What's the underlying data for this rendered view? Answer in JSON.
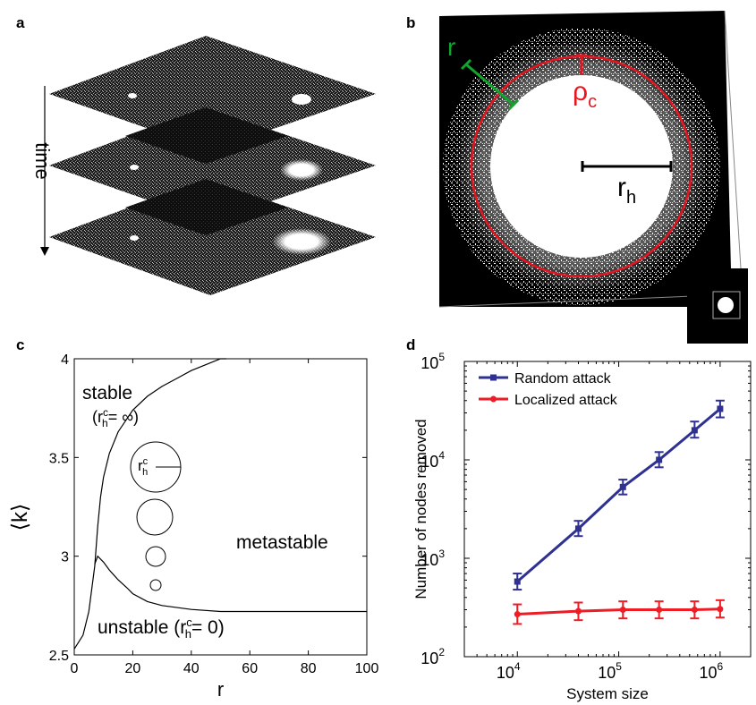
{
  "panels": {
    "a": {
      "label": "a",
      "axis_label": "time"
    },
    "b": {
      "label": "b",
      "r_label": "r",
      "rho_label": "ρ",
      "rho_sub": "c",
      "rh_label": "r",
      "rh_sub": "h",
      "colors": {
        "ring": "#e8141f",
        "r_marker": "#11a52b",
        "rh_marker": "#000000"
      }
    },
    "c": {
      "label": "c",
      "region_stable": "stable",
      "stable_condition": "(r",
      "stable_condition_sup": "c",
      "stable_condition_sub": "h",
      "stable_condition_rest": "= ∞)",
      "region_metastable": "metastable",
      "region_unstable": "unstable (r",
      "unstable_sup": "c",
      "unstable_sub": "h",
      "unstable_rest": "= 0)",
      "circle_label": "r",
      "circle_label_sup": "c",
      "circle_label_sub": "h"
    },
    "d": {
      "label": "d",
      "colors": {
        "random": "#2e3192",
        "localized": "#ee1c25"
      }
    }
  },
  "chart_data": [
    {
      "type": "line",
      "panel": "c",
      "xlabel": "r",
      "ylabel": "⟨k⟩",
      "xlim": [
        0,
        100
      ],
      "ylim": [
        2.5,
        4.0
      ],
      "xticks": [
        "0",
        "20",
        "40",
        "60",
        "80",
        "100"
      ],
      "yticks": [
        "2.5",
        "3",
        "3.5",
        "4"
      ],
      "series": [
        {
          "role": "stable boundary",
          "x": [
            0,
            3,
            5,
            7,
            8,
            9,
            10,
            12,
            15,
            20,
            25,
            30,
            35,
            40,
            45,
            50,
            52
          ],
          "y": [
            2.53,
            2.6,
            2.72,
            2.95,
            3.15,
            3.3,
            3.4,
            3.52,
            3.63,
            3.74,
            3.81,
            3.86,
            3.9,
            3.94,
            3.97,
            4.0,
            4.0
          ]
        },
        {
          "role": "unstable boundary",
          "x": [
            7,
            8,
            10,
            12,
            15,
            18,
            20,
            25,
            30,
            40,
            50,
            60,
            80,
            100
          ],
          "y": [
            2.96,
            3.0,
            2.97,
            2.93,
            2.88,
            2.84,
            2.81,
            2.77,
            2.75,
            2.73,
            2.72,
            2.72,
            2.72,
            2.72
          ]
        }
      ]
    },
    {
      "type": "line",
      "panel": "d",
      "xlabel": "System size",
      "ylabel": "Number of nodes removed",
      "xscale": "log",
      "yscale": "log",
      "xlim": [
        3000,
        2000000
      ],
      "ylim": [
        100,
        100000
      ],
      "xticks": [
        {
          "base": "10",
          "exp": "4"
        },
        {
          "base": "10",
          "exp": "5"
        },
        {
          "base": "10",
          "exp": "6"
        }
      ],
      "yticks": [
        {
          "base": "10",
          "exp": "2"
        },
        {
          "base": "10",
          "exp": "3"
        },
        {
          "base": "10",
          "exp": "4"
        },
        {
          "base": "10",
          "exp": "5"
        }
      ],
      "legend": "top-left",
      "series": [
        {
          "name": "Random attack",
          "x": [
            10000,
            40000,
            110000,
            250000,
            560000,
            1000000
          ],
          "y": [
            580,
            2000,
            5300,
            10000,
            20000,
            33000
          ],
          "err_low": [
            480,
            1680,
            4450,
            8400,
            16800,
            27000
          ],
          "err_high": [
            700,
            2400,
            6300,
            12000,
            24500,
            40000
          ]
        },
        {
          "name": "Localized attack",
          "x": [
            10000,
            40000,
            110000,
            250000,
            560000,
            1000000
          ],
          "y": [
            270,
            290,
            300,
            300,
            300,
            305
          ],
          "err_low": [
            215,
            235,
            245,
            245,
            245,
            250
          ],
          "err_high": [
            340,
            355,
            365,
            365,
            365,
            375
          ]
        }
      ]
    }
  ]
}
